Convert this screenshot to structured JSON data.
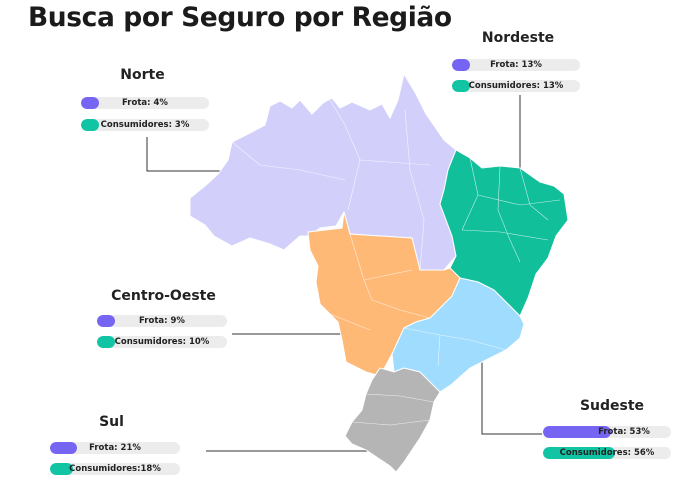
{
  "title": "Busca por Seguro por Região",
  "colors": {
    "frota": "#7565f2",
    "consumidores": "#11c4a4",
    "track": "#ececec",
    "norte": "#d2d0fb",
    "nordeste": "#11bf9b",
    "centro_oeste": "#ffb977",
    "sudeste": "#9fdcfe",
    "sul": "#b5b5b5"
  },
  "chart_data": {
    "type": "bar",
    "title": "Busca por Seguro por Região",
    "series": [
      {
        "name": "Frota",
        "values": [
          4,
          13,
          9,
          53,
          21
        ]
      },
      {
        "name": "Consumidores",
        "values": [
          3,
          13,
          10,
          56,
          18
        ]
      }
    ],
    "regions": [
      {
        "name": "Norte",
        "frota_label": "Frota: 4%",
        "frota": 4,
        "consumidores_label": "Consumidores: 3%",
        "consumidores": 3
      },
      {
        "name": "Nordeste",
        "frota_label": "Frota: 13%",
        "frota": 13,
        "consumidores_label": "Consumidores: 13%",
        "consumidores": 13
      },
      {
        "name": "Centro-Oeste",
        "frota_label": "Frota: 9%",
        "frota": 9,
        "consumidores_label": "Consumidores: 10%",
        "consumidores": 10
      },
      {
        "name": "Sudeste",
        "frota_label": "Frota: 53%",
        "frota": 53,
        "consumidores_label": "Consumidores: 56%",
        "consumidores": 56
      },
      {
        "name": "Sul",
        "frota_label": "Frota: 21%",
        "frota": 21,
        "consumidores_label": "Consumidores:18%",
        "consumidores": 18
      }
    ],
    "grid": false,
    "legend": "none"
  }
}
